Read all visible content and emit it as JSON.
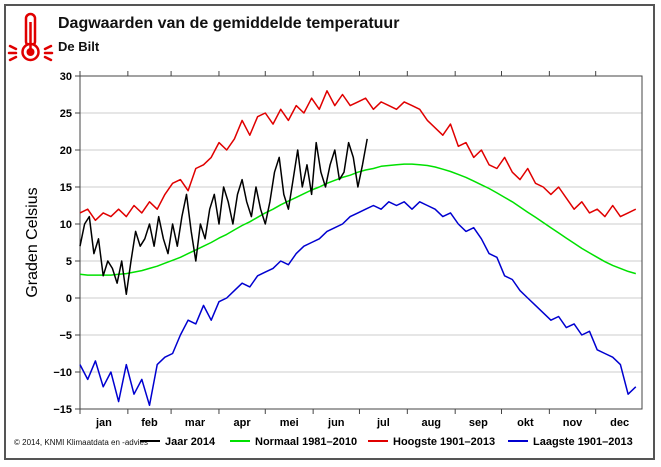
{
  "chart_data": {
    "type": "line",
    "title": "Dagwaarden van de gemiddelde temperatuur",
    "subtitle": "De Bilt",
    "ylabel": "Graden Celsius",
    "xlabel": "",
    "ylim": [
      -15,
      30
    ],
    "yticks": [
      -15,
      -10,
      -5,
      0,
      5,
      10,
      15,
      20,
      25,
      30
    ],
    "xlim_days": [
      1,
      365
    ],
    "months": [
      "jan",
      "feb",
      "mar",
      "apr",
      "mei",
      "jun",
      "jul",
      "aug",
      "sep",
      "okt",
      "nov",
      "dec"
    ],
    "month_days": [
      31,
      28,
      31,
      30,
      31,
      30,
      31,
      31,
      30,
      31,
      30,
      31
    ],
    "grid": true,
    "legend_position": "bottom",
    "series": [
      {
        "name": "Jaar 2014",
        "color": "#000000",
        "x": [
          1,
          4,
          7,
          10,
          13,
          16,
          19,
          22,
          25,
          28,
          31,
          34,
          37,
          40,
          43,
          46,
          49,
          52,
          55,
          58,
          61,
          64,
          67,
          70,
          73,
          76,
          79,
          82,
          85,
          88,
          91,
          94,
          97,
          100,
          103,
          106,
          109,
          112,
          115,
          118,
          121,
          124,
          127,
          130,
          133,
          136,
          139,
          142,
          145,
          148,
          151,
          154,
          157,
          160,
          163,
          166,
          169,
          172,
          175,
          178,
          181,
          184,
          187
        ],
        "values": [
          7,
          10,
          11,
          6,
          8,
          3,
          5,
          4,
          2,
          5,
          0.5,
          5,
          9,
          7,
          8,
          10,
          7,
          11,
          8,
          6,
          10,
          7,
          11,
          14,
          9,
          5,
          10,
          8,
          12,
          14,
          10,
          15,
          13,
          10,
          14,
          16,
          13,
          11,
          15,
          12,
          10,
          13,
          17,
          19,
          14,
          12,
          16,
          20,
          15,
          18,
          14,
          21,
          17,
          15,
          18,
          20,
          16,
          17,
          21,
          19,
          15,
          18,
          21.5
        ]
      },
      {
        "name": "Normaal 1981–2010",
        "color": "#00e000",
        "x": [
          1,
          6,
          11,
          16,
          21,
          26,
          31,
          36,
          41,
          46,
          51,
          56,
          61,
          66,
          71,
          76,
          81,
          86,
          91,
          96,
          101,
          106,
          111,
          116,
          121,
          126,
          131,
          136,
          141,
          146,
          151,
          156,
          161,
          166,
          171,
          176,
          181,
          186,
          191,
          196,
          201,
          206,
          211,
          216,
          221,
          226,
          231,
          236,
          241,
          246,
          251,
          256,
          261,
          266,
          271,
          276,
          281,
          286,
          291,
          296,
          301,
          306,
          311,
          316,
          321,
          326,
          331,
          336,
          341,
          346,
          351,
          356,
          361
        ],
        "values": [
          3.2,
          3.1,
          3.1,
          3.1,
          3.1,
          3.2,
          3.3,
          3.5,
          3.7,
          4.0,
          4.3,
          4.7,
          5.1,
          5.5,
          6.0,
          6.5,
          7.0,
          7.5,
          8.1,
          8.6,
          9.2,
          9.8,
          10.3,
          10.9,
          11.5,
          12.0,
          12.6,
          13.1,
          13.6,
          14.1,
          14.6,
          15.0,
          15.5,
          15.9,
          16.3,
          16.6,
          17.0,
          17.3,
          17.5,
          17.8,
          17.9,
          18.0,
          18.1,
          18.1,
          18.0,
          17.9,
          17.7,
          17.4,
          17.1,
          16.7,
          16.3,
          15.8,
          15.3,
          14.8,
          14.2,
          13.6,
          13.0,
          12.3,
          11.6,
          10.9,
          10.2,
          9.5,
          8.8,
          8.1,
          7.4,
          6.7,
          6.1,
          5.5,
          4.9,
          4.4,
          4.0,
          3.6,
          3.3
        ]
      },
      {
        "name": "Hoogste 1901–2013",
        "color": "#e00000",
        "x": [
          1,
          6,
          11,
          16,
          21,
          26,
          31,
          36,
          41,
          46,
          51,
          56,
          61,
          66,
          71,
          76,
          81,
          86,
          91,
          96,
          101,
          106,
          111,
          116,
          121,
          126,
          131,
          136,
          141,
          146,
          151,
          156,
          161,
          166,
          171,
          176,
          181,
          186,
          191,
          196,
          201,
          206,
          211,
          216,
          221,
          226,
          231,
          236,
          241,
          246,
          251,
          256,
          261,
          266,
          271,
          276,
          281,
          286,
          291,
          296,
          301,
          306,
          311,
          316,
          321,
          326,
          331,
          336,
          341,
          346,
          351,
          356,
          361
        ],
        "values": [
          11.5,
          12,
          10.5,
          11.5,
          11,
          12,
          11,
          12.5,
          11.5,
          13,
          12,
          14,
          15.5,
          16,
          14.5,
          17.5,
          18,
          19,
          21,
          20,
          21.5,
          24,
          22,
          24.5,
          25,
          23.5,
          25.5,
          24,
          26,
          25,
          27,
          25.5,
          28,
          26,
          27.5,
          26,
          26.5,
          27,
          25.5,
          26.5,
          26,
          25.5,
          26.5,
          26,
          25.5,
          24,
          23,
          22,
          23.5,
          20.5,
          21,
          19,
          20,
          18,
          17.5,
          19,
          17,
          16,
          17.5,
          15.5,
          15,
          14,
          15,
          13.5,
          12,
          13,
          11.5,
          12,
          11,
          12.5,
          11,
          11.5,
          12
        ]
      },
      {
        "name": "Laagste 1901–2013",
        "color": "#0000d0",
        "x": [
          1,
          6,
          11,
          16,
          21,
          26,
          31,
          36,
          41,
          46,
          51,
          56,
          61,
          66,
          71,
          76,
          81,
          86,
          91,
          96,
          101,
          106,
          111,
          116,
          121,
          126,
          131,
          136,
          141,
          146,
          151,
          156,
          161,
          166,
          171,
          176,
          181,
          186,
          191,
          196,
          201,
          206,
          211,
          216,
          221,
          226,
          231,
          236,
          241,
          246,
          251,
          256,
          261,
          266,
          271,
          276,
          281,
          286,
          291,
          296,
          301,
          306,
          311,
          316,
          321,
          326,
          331,
          336,
          341,
          346,
          351,
          356,
          361
        ],
        "values": [
          -9,
          -11,
          -8.5,
          -12,
          -10,
          -14,
          -9,
          -13,
          -11,
          -14.5,
          -9,
          -8,
          -7.5,
          -5,
          -3,
          -3.5,
          -1,
          -3,
          -0.5,
          0,
          1,
          2,
          1.5,
          3,
          3.5,
          4,
          5,
          4.5,
          6,
          7,
          7.5,
          8,
          9,
          9.5,
          10,
          11,
          11.5,
          12,
          12.5,
          12,
          13,
          12.5,
          13,
          12,
          13,
          12.5,
          12,
          11,
          11.5,
          10,
          9,
          9.5,
          8,
          6,
          5.5,
          3,
          2.5,
          1,
          0,
          -1,
          -2,
          -3,
          -2.5,
          -4,
          -3.5,
          -5,
          -4.5,
          -7,
          -7.5,
          -8,
          -9,
          -13,
          -12
        ]
      }
    ]
  },
  "copyright": "© 2014, KNMI Klimaatdata en -advies",
  "icon": "thermometer-icon"
}
